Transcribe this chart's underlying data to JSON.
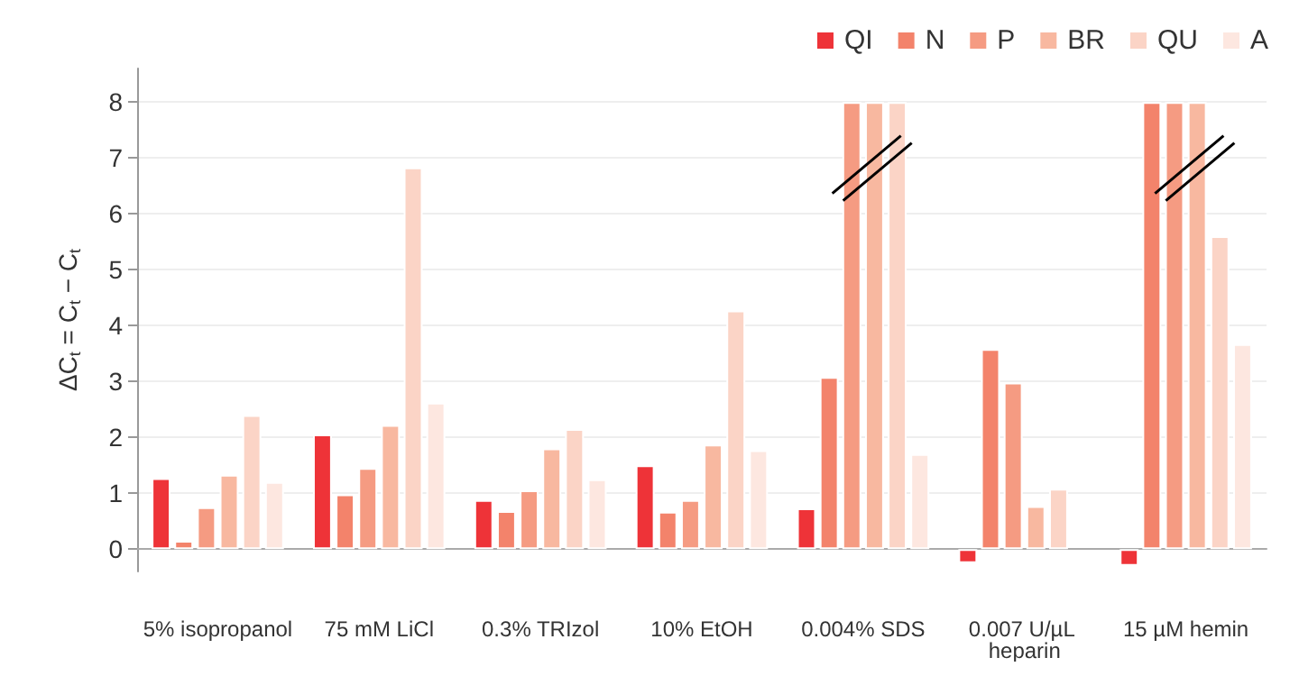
{
  "chart_data": {
    "type": "bar",
    "ylabel": "ΔC$_{t}$ = C$_{t}$ − C$_{t}$",
    "categories": [
      "5% isopropanol",
      "75 mM LiCl",
      "0.3% TRIzol",
      "10% EtOH",
      "0.004% SDS",
      "0.007 U/µL heparin",
      "15 µM hemin"
    ],
    "series": [
      {
        "name": "QI",
        "color": "#ee3338",
        "values": [
          1.27,
          2.05,
          0.88,
          1.5,
          0.73,
          -0.25,
          -0.3
        ]
      },
      {
        "name": "N",
        "color": "#f3836b",
        "values": [
          0.15,
          0.98,
          0.68,
          0.67,
          3.08,
          3.58,
          8
        ]
      },
      {
        "name": "P",
        "color": "#f59b82",
        "values": [
          0.75,
          1.45,
          1.05,
          0.88,
          8,
          2.98,
          8
        ]
      },
      {
        "name": "BR",
        "color": "#f8b8a0",
        "values": [
          1.33,
          2.22,
          1.8,
          1.87,
          8,
          0.77,
          8
        ]
      },
      {
        "name": "QU",
        "color": "#fbd4c6",
        "values": [
          2.4,
          6.83,
          2.15,
          4.27,
          8,
          1.08,
          5.6
        ]
      },
      {
        "name": "A",
        "color": "#fde7e0",
        "values": [
          1.2,
          2.62,
          1.25,
          1.77,
          1.7,
          null,
          3.67
        ]
      }
    ],
    "ylim": [
      -0.4,
      8.6
    ],
    "yticks": [
      0,
      1,
      2,
      3,
      4,
      5,
      6,
      7,
      8
    ],
    "grid": "y",
    "legend": "top right"
  }
}
